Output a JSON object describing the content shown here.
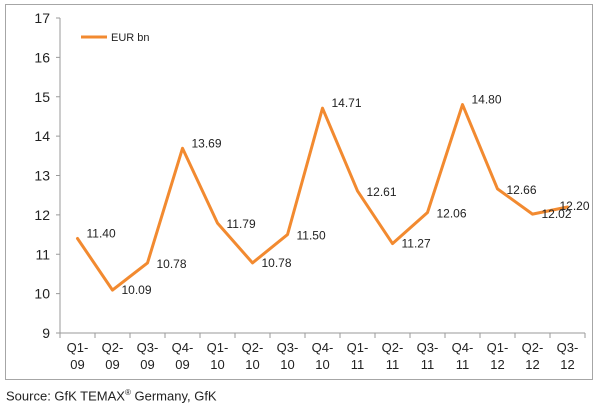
{
  "chart_data": {
    "type": "line",
    "categories": [
      [
        "Q1-",
        "09"
      ],
      [
        "Q2-",
        "09"
      ],
      [
        "Q3-",
        "09"
      ],
      [
        "Q4-",
        "09"
      ],
      [
        "Q1-",
        "10"
      ],
      [
        "Q2-",
        "10"
      ],
      [
        "Q3-",
        "10"
      ],
      [
        "Q4-",
        "10"
      ],
      [
        "Q1-",
        "11"
      ],
      [
        "Q2-",
        "11"
      ],
      [
        "Q3-",
        "11"
      ],
      [
        "Q4-",
        "11"
      ],
      [
        "Q1-",
        "12"
      ],
      [
        "Q2-",
        "12"
      ],
      [
        "Q3-",
        "12"
      ]
    ],
    "series": [
      {
        "name": "EUR bn",
        "color": "#f28a30",
        "values": [
          11.4,
          10.09,
          10.78,
          13.69,
          11.79,
          10.78,
          11.5,
          14.71,
          12.61,
          11.27,
          12.06,
          14.8,
          12.66,
          12.02,
          12.2
        ],
        "labels": [
          "11.40",
          "10.09",
          "10.78",
          "13.69",
          "11.79",
          "10.78",
          "11.50",
          "14.71",
          "12.61",
          "11.27",
          "12.06",
          "14.80",
          "12.66",
          "12.02",
          "12.20"
        ]
      }
    ],
    "ylim": [
      9,
      17
    ],
    "yticks": [
      9,
      10,
      11,
      12,
      13,
      14,
      15,
      16,
      17
    ],
    "grid": false,
    "legend_position": "top-left"
  },
  "source": {
    "prefix": "Source: GfK TEMAX",
    "mark": "®",
    "suffix": " Germany, GfK"
  }
}
